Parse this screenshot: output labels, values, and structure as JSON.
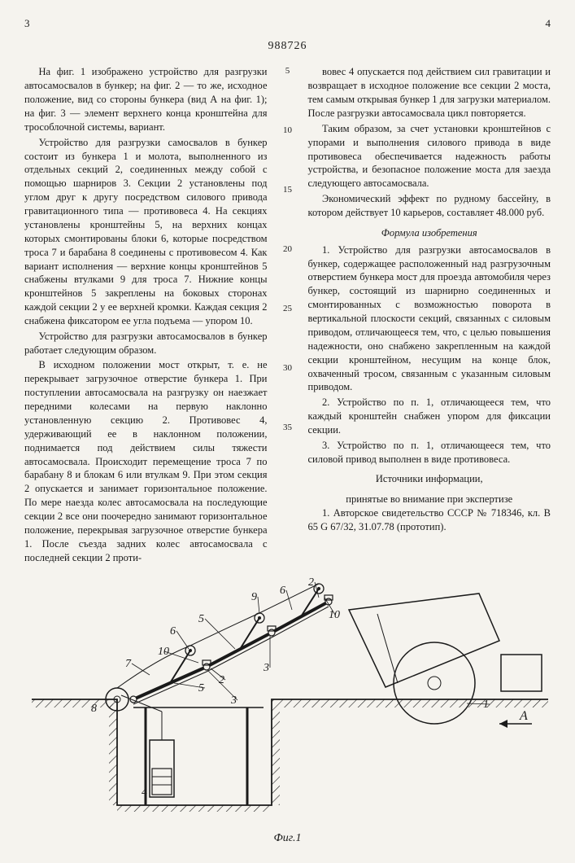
{
  "page_left": "3",
  "page_right": "4",
  "patent_number": "988726",
  "col1": {
    "p1": "На фиг. 1 изображено устройство для разгрузки автосамосвалов в бункер; на фиг. 2 — то же, исходное положение, вид со стороны бункера (вид А на фиг. 1); на фиг. 3 — элемент верхнего конца кронштейна для трособлочной системы, вариант.",
    "p2": "Устройство для разгрузки самосвалов в бункер состоит из бункера 1 и молота, выполненного из отдельных секций 2, соединенных между собой с помощью шарниров 3. Секции 2 установлены под углом друг к другу посредством силового привода гравитационного типа — противовеса 4. На секциях установлены кронштейны 5, на верхних концах которых смонтированы блоки 6, которые посредством троса 7 и барабана 8 соединены с противовесом 4. Как вариант исполнения — верхние концы кронштейнов 5 снабжены втулками 9 для троса 7. Нижние концы кронштейнов 5 закреплены на боковых сторонах каждой секции 2 у ее верхней кромки. Каждая секция 2 снабжена фиксатором ее угла подъема — упором 10.",
    "p3": "Устройство для разгрузки автосамосвалов в бункер работает следующим образом.",
    "p4": "В исходном положении мост открыт, т. е. не перекрывает загрузочное отверстие бункера 1. При поступлении автосамосвала на разгрузку он наезжает передними колесами на первую наклонно установленную секцию 2. Противовес 4, удерживающий ее в наклонном положении, поднимается под действием силы тяжести автосамосвала. Происходит перемещение троса 7 по барабану 8 и блокам 6 или втулкам 9. При этом секция 2 опускается и занимает горизонтальное положение. По мере наезда колес автосамосвала на последующие секции 2 все они поочередно занимают горизонтальное положение, перекрывая загрузочное отверстие бункера 1. После съезда задних колес автосамосвала с последней секции 2 проти-"
  },
  "col2": {
    "p1": "вовес 4 опускается под действием сил гравитации и возвращает в исходное положение все секции 2 моста, тем самым открывая бункер 1 для загрузки материалом. После разгрузки автосамосвала цикл повторяется.",
    "p2": "Таким образом, за счет установки кронштейнов с упорами и выполнения силового привода в виде противовеса обеспечивается надежность работы устройства, и безопасное положение моста для заезда следующего автосамосвала.",
    "p3": "Экономический эффект по рудному бассейну, в котором действует 10 карьеров, составляет 48.000 руб.",
    "formula_title": "Формула изобретения",
    "claim1": "1. Устройство для разгрузки автосамосвалов в бункер, содержащее расположенный над разгрузочным отверстием бункера мост для проезда автомобиля через бункер, состоящий из шарнирно соединенных и смонтированных с возможностью поворота в вертикальной плоскости секций, связанных с силовым приводом, отличающееся тем, что, с целью повышения надежности, оно снабжено закрепленным на каждой секции кронштейном, несущим на конце блок, охваченный тросом, связанным с указанным силовым приводом.",
    "claim2": "2. Устройство по п. 1, отличающееся тем, что каждый кронштейн снабжен упором для фиксации секции.",
    "claim3": "3. Устройство по п. 1, отличающееся тем, что силовой привод выполнен в виде противовеса.",
    "sources_title": "Источники информации,",
    "sources_sub": "принятые во внимание при экспертизе",
    "source1": "1. Авторское свидетельство СССР № 718346, кл. В 65 G 67/32, 31.07.78 (прототип)."
  },
  "line_numbers": [
    "5",
    "10",
    "15",
    "20",
    "25",
    "30",
    "35"
  ],
  "figure": {
    "caption": "Фиг.1",
    "labels": [
      "1",
      "2",
      "3",
      "4",
      "5",
      "6",
      "7",
      "8",
      "9",
      "10",
      "А"
    ],
    "colors": {
      "stroke": "#1a1a1a",
      "bg": "#f5f3ee",
      "hatch": "#1a1a1a"
    },
    "stroke_width_thin": 1,
    "stroke_width_thick": 1.8
  }
}
